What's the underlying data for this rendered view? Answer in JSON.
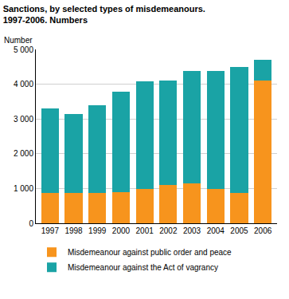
{
  "chart_data": {
    "type": "bar",
    "title": "Sanctions, by selected types of misdemeanours.\n1997-2006. Numbers",
    "y_label": "Number",
    "stacked": true,
    "categories": [
      "1997",
      "1998",
      "1999",
      "2000",
      "2001",
      "2002",
      "2003",
      "2004",
      "2005",
      "2006"
    ],
    "series": [
      {
        "name": "Misdemeanour against public order and peace",
        "color": "#f7941d",
        "values": [
          880,
          870,
          880,
          900,
          980,
          1110,
          1150,
          990,
          880,
          4100
        ]
      },
      {
        "name": "Misdemeanour against the Act of vagrancy",
        "color": "#1aa3a5",
        "values": [
          2420,
          2270,
          2510,
          2880,
          3100,
          3000,
          3240,
          3380,
          3620,
          610
        ]
      }
    ],
    "ylim": [
      0,
      5000
    ],
    "yticks": [
      0,
      {
        "value": 1000,
        "label": "1 000"
      },
      {
        "value": 2000,
        "label": "2 000"
      },
      {
        "value": 3000,
        "label": "3 000"
      },
      {
        "value": 4000,
        "label": "4 000"
      },
      {
        "value": 5000,
        "label": "5 000"
      }
    ],
    "grid": true,
    "legend": "bottom"
  }
}
